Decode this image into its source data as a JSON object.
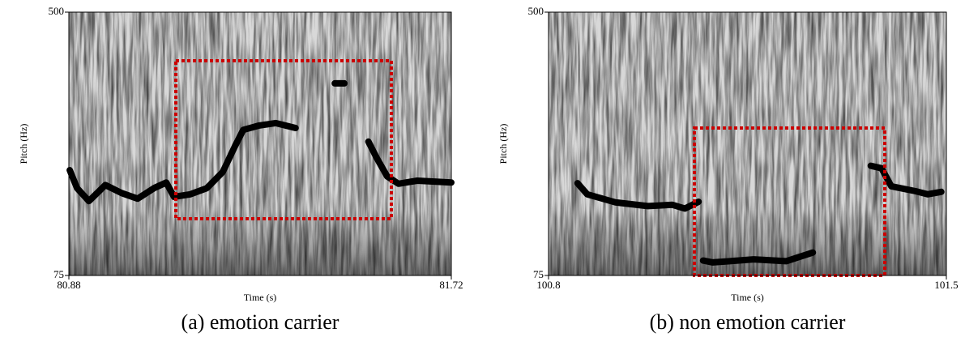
{
  "chart_data": [
    {
      "type": "line",
      "caption": "(a) emotion carrier",
      "xlabel": "Time (s)",
      "ylabel": "Pitch (Hz)",
      "xlim": [
        80.88,
        81.72
      ],
      "xticks": [
        80.88,
        81.72
      ],
      "ylim": [
        75,
        500
      ],
      "yticks": [
        75,
        500
      ],
      "color": "#000000",
      "x": [
        80.882,
        80.898,
        80.924,
        80.96,
        80.996,
        81.031,
        81.067,
        81.094,
        81.111,
        81.147,
        81.183,
        81.218,
        81.245,
        81.263,
        81.298,
        81.334,
        81.378,
        81.42,
        81.464,
        81.485,
        81.51,
        81.538,
        81.556,
        81.579,
        81.604,
        81.645,
        81.72
      ],
      "values": [
        245,
        216,
        195,
        221,
        208,
        199,
        216,
        225,
        202,
        206,
        216,
        242,
        284,
        310,
        317,
        321,
        313,
        null,
        385,
        385,
        null,
        291,
        265,
        235,
        223,
        228,
        225
      ]
    },
    {
      "type": "line",
      "caption": "(b) non emotion carrier",
      "xlabel": "Time (s)",
      "ylabel": "Pitch (Hz)",
      "xlim": [
        100.8,
        101.5
      ],
      "xticks": [
        100.8,
        101.5
      ],
      "ylim": [
        75,
        500
      ],
      "yticks": [
        75,
        500
      ],
      "color": "#000000",
      "x": [
        100.851,
        100.868,
        100.918,
        100.975,
        101.018,
        101.04,
        101.064,
        101.068,
        101.072,
        101.089,
        101.161,
        101.218,
        101.265,
        101.3,
        101.367,
        101.386,
        101.403,
        101.446,
        101.467,
        101.491
      ],
      "values": [
        224,
        206,
        193,
        187,
        189,
        183,
        194,
        null,
        99,
        96,
        101,
        98,
        112,
        null,
        252,
        248,
        219,
        211,
        206,
        210
      ]
    }
  ]
}
